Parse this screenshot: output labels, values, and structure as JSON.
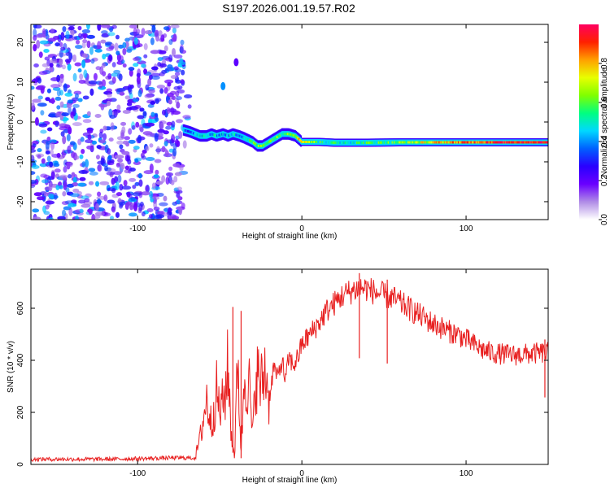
{
  "title": "S197.2026.001.19.57.R02",
  "chart_data": [
    {
      "type": "heatmap",
      "name": "spectrogram",
      "title": "S197.2026.001.19.57.R02",
      "xlabel": "Height of straight line (km)",
      "ylabel": "Frequency (Hz)",
      "xlim": [
        -165,
        150
      ],
      "ylim": [
        -24.5,
        24.5
      ],
      "xticks": [
        -100,
        0,
        100
      ],
      "yticks": [
        -20,
        -10,
        0,
        10,
        20
      ],
      "colorbar": {
        "label": "Normalized spectral amplitude",
        "range": [
          0.0,
          1.0
        ],
        "ticks": [
          0.0,
          0.2,
          0.4,
          0.6,
          0.8
        ],
        "tick_labels": [
          "0.0",
          "0.2",
          "0.4",
          "0.6",
          "0.8"
        ],
        "colors": [
          "#ffffff",
          "#b08ce6",
          "#6a00ff",
          "#2a00ff",
          "#0060ff",
          "#00d8ff",
          "#00ff80",
          "#80ff00",
          "#e8ff00",
          "#ffa000",
          "#ff2000",
          "#ff0060"
        ]
      },
      "noise_region": {
        "x_range": [
          -165,
          -72
        ],
        "amplitude_range": [
          0.0,
          0.35
        ]
      },
      "signal_track": {
        "x": [
          -72,
          -68,
          -65,
          -62,
          -58,
          -55,
          -52,
          -48,
          -45,
          -42,
          -38,
          -35,
          -30,
          -27,
          -24,
          -20,
          -16,
          -12,
          -8,
          -4,
          0,
          10,
          20,
          40,
          60,
          80,
          100,
          120,
          150
        ],
        "frequency_hz": [
          -2,
          -2.5,
          -3,
          -3.5,
          -3.5,
          -3,
          -3.5,
          -3,
          -3.5,
          -3,
          -3.5,
          -4,
          -5,
          -6,
          -6,
          -5,
          -4,
          -3,
          -3,
          -3.5,
          -5,
          -5,
          -5.2,
          -5.2,
          -5.1,
          -5.1,
          -5.1,
          -5.1,
          -5.1
        ],
        "amplitude": [
          0.35,
          0.4,
          0.45,
          0.45,
          0.45,
          0.4,
          0.45,
          0.45,
          0.4,
          0.45,
          0.45,
          0.5,
          0.55,
          0.6,
          0.65,
          0.6,
          0.6,
          0.6,
          0.65,
          0.7,
          0.8,
          0.55,
          0.5,
          0.55,
          0.6,
          0.75,
          0.85,
          0.95,
          0.95
        ]
      },
      "blobs": [
        {
          "x": -48,
          "frequency_hz": 9,
          "amplitude": 0.3
        },
        {
          "x": -40,
          "frequency_hz": 15,
          "amplitude": 0.1
        }
      ]
    },
    {
      "type": "line",
      "name": "snr",
      "xlabel": "Height of straight line (km)",
      "ylabel": "SNR (10 * v/v)",
      "xlim": [
        -165,
        150
      ],
      "ylim": [
        0,
        750
      ],
      "xticks": [
        -100,
        0,
        100
      ],
      "yticks": [
        0,
        200,
        400,
        600
      ],
      "series": [
        {
          "name": "SNR",
          "color": "#e82020",
          "x": [
            -165,
            -140,
            -120,
            -100,
            -80,
            -65,
            -62,
            -58,
            -55,
            -52,
            -50,
            -47,
            -45,
            -43,
            -41,
            -39,
            -37,
            -35,
            -32,
            -30,
            -28,
            -25,
            -22,
            -20,
            -17,
            -15,
            -12,
            -10,
            -8,
            -5,
            -2,
            0,
            5,
            10,
            15,
            20,
            25,
            30,
            35,
            40,
            45,
            50,
            55,
            60,
            65,
            70,
            75,
            80,
            85,
            90,
            95,
            100,
            105,
            110,
            115,
            120,
            130,
            140,
            150
          ],
          "y": [
            20,
            20,
            20,
            22,
            25,
            25,
            100,
            250,
            150,
            280,
            200,
            260,
            380,
            120,
            30,
            410,
            40,
            350,
            300,
            100,
            360,
            300,
            370,
            250,
            380,
            330,
            400,
            320,
            410,
            380,
            420,
            460,
            500,
            540,
            590,
            620,
            650,
            665,
            680,
            675,
            660,
            650,
            640,
            620,
            600,
            580,
            560,
            540,
            525,
            510,
            500,
            480,
            460,
            440,
            430,
            425,
            420,
            425,
            430
          ]
        }
      ],
      "spikes": [
        {
          "x": -42,
          "y": 605
        },
        {
          "x": -37,
          "y": 590
        },
        {
          "x": 35,
          "y": 735
        },
        {
          "x": 52,
          "y": 710
        },
        {
          "x": 148,
          "y": 480
        }
      ]
    }
  ]
}
